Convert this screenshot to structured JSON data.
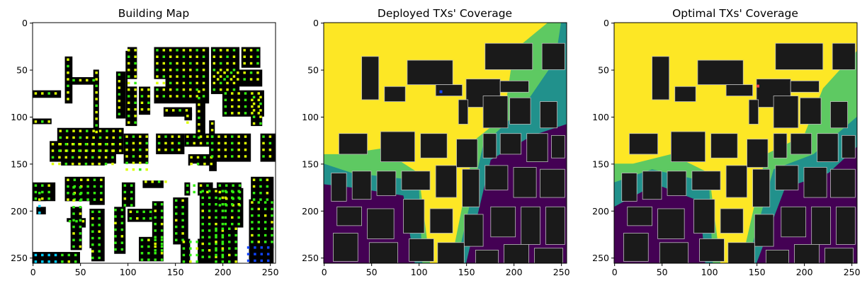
{
  "panels": [
    {
      "title": "Building Map",
      "kind": "building_map",
      "x_ticks": [
        "0",
        "50",
        "100",
        "150",
        "200",
        "250"
      ],
      "y_ticks": [
        "0",
        "50",
        "100",
        "150",
        "200",
        "250"
      ]
    },
    {
      "title": "Deployed TXs' Coverage",
      "kind": "coverage_deployed",
      "x_ticks": [
        "0",
        "50",
        "100",
        "150",
        "200",
        "250"
      ],
      "y_ticks": [
        "0",
        "50",
        "100",
        "150",
        "200",
        "250"
      ]
    },
    {
      "title": "Optimal TXs' Coverage",
      "kind": "coverage_optimal",
      "x_ticks": [
        "0",
        "50",
        "100",
        "150",
        "200",
        "250"
      ],
      "y_ticks": [
        "0",
        "50",
        "100",
        "150",
        "200",
        "250"
      ]
    }
  ],
  "colors": {
    "coverage_high": "#fde725",
    "coverage_mid_high": "#5ec962",
    "coverage_mid": "#21918c",
    "coverage_low": "#440154",
    "building": "#1a1a1a",
    "building_map_bg": "#ffffff",
    "candidate_green": "#33ee11",
    "candidate_yellow": "#ddff00",
    "candidate_cyan": "#00ccff",
    "candidate_blue": "#1144ff"
  }
}
